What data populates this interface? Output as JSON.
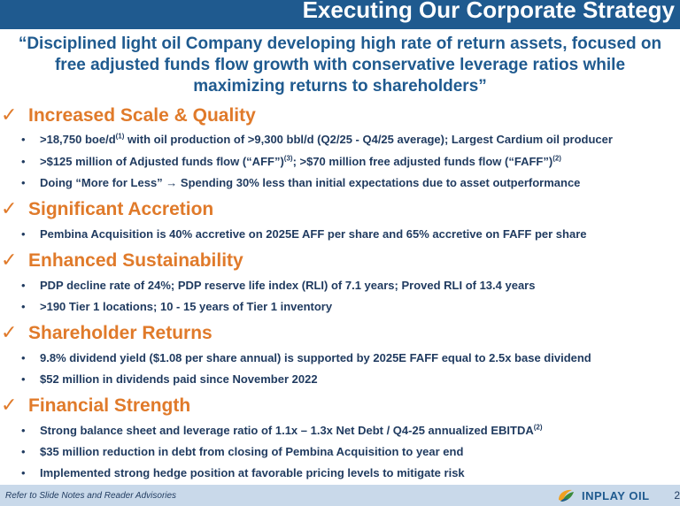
{
  "header": {
    "title": "Executing Our Corporate Strategy"
  },
  "quote": {
    "line1": "“Disciplined light oil Company developing high rate of return assets, focused on",
    "line2": "free adjusted funds flow growth with conservative leverage ratios while",
    "line3": "maximizing returns to shareholders”"
  },
  "sections": [
    {
      "title": "Increased Scale & Quality",
      "bullets": [
        {
          "pre": ">18,750 boe/d",
          "sup": "(1)",
          "post": " with oil production of >9,300 bbl/d (Q2/25 - Q4/25 average); Largest Cardium oil producer"
        },
        {
          "pre": ">$125 million of Adjusted funds flow (“AFF”)",
          "sup": "(3)",
          "post": "; >$70 million free adjusted funds flow (“FAFF”)",
          "sup2": "(2)"
        },
        {
          "pre": "Doing “More for Less” ",
          "arrow": "→",
          "post": " Spending 30% less than initial expectations due to asset outperformance"
        }
      ]
    },
    {
      "title": "Significant Accretion",
      "bullets": [
        {
          "pre": "Pembina Acquisition is 40% accretive on 2025E AFF per share and 65% accretive on FAFF per share"
        }
      ]
    },
    {
      "title": "Enhanced Sustainability",
      "bullets": [
        {
          "pre": "PDP decline rate of 24%; PDP reserve life index (RLI) of 7.1 years; Proved RLI of 13.4 years"
        },
        {
          "pre": ">190 Tier 1 locations; 10 - 15 years of Tier 1 inventory"
        }
      ]
    },
    {
      "title": "Shareholder Returns",
      "bullets": [
        {
          "pre": "9.8% dividend yield ($1.08 per share annual) is supported by 2025E FAFF equal to 2.5x base dividend"
        },
        {
          "pre": "$52 million in dividends paid since November 2022"
        }
      ]
    },
    {
      "title": "Financial Strength",
      "bullets": [
        {
          "pre": "Strong balance sheet and leverage ratio of 1.1x – 1.3x Net Debt / Q4-25 annualized EBITDA",
          "sup": "(2)"
        },
        {
          "pre": "$35 million reduction in debt from closing of Pembina Acquisition to year end"
        },
        {
          "pre": "Implemented strong hedge position at favorable pricing levels to mitigate risk"
        }
      ]
    }
  ],
  "footer": {
    "note": "Refer to Slide Notes and Reader Advisories",
    "logo_text": "INPLAY OIL",
    "page": "2"
  },
  "colors": {
    "brand_blue": "#1f5a8f",
    "accent_orange": "#e07a2a",
    "text_navy": "#1f3a5f",
    "footer_bg": "#c9d9ea"
  },
  "icons": {
    "section_marker": "check-icon",
    "logo": "inplay-logo-icon"
  }
}
